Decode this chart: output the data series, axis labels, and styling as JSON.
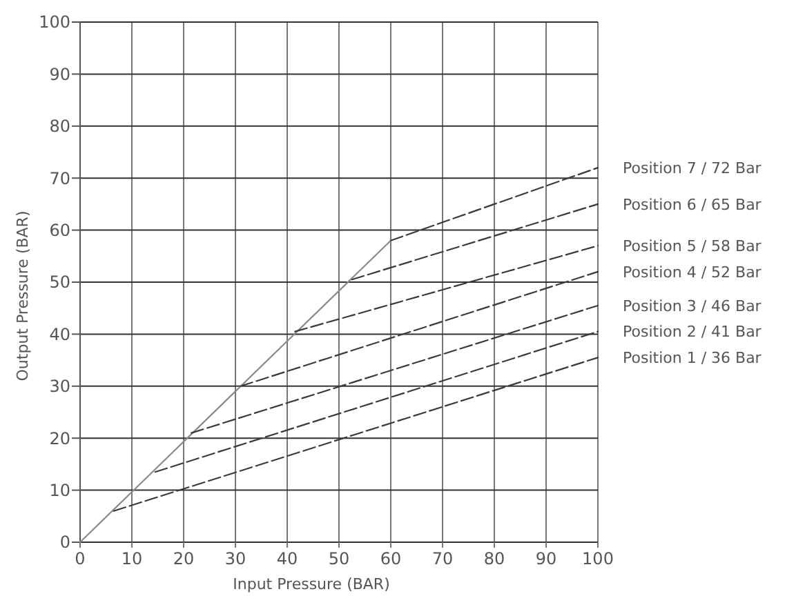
{
  "chart_data": {
    "type": "line",
    "xlabel": "Input Pressure (BAR)",
    "ylabel": "Output Pressure (BAR)",
    "xlim": [
      0,
      100
    ],
    "ylim": [
      0,
      100
    ],
    "xticks": [
      0,
      10,
      20,
      30,
      40,
      50,
      60,
      70,
      80,
      90,
      100
    ],
    "yticks": [
      0,
      10,
      20,
      30,
      40,
      50,
      60,
      70,
      80,
      90,
      100
    ],
    "grid": true,
    "legend": false,
    "marker": "none",
    "line_style": "dashed",
    "series": [
      {
        "color": "#8a8a8a",
        "line_style": "solid",
        "x": [
          0,
          60
        ],
        "values": [
          0,
          58
        ]
      },
      {
        "name": "Position 1 / 36 Bar",
        "color": "#3a3a3a",
        "x": [
          6.5,
          100
        ],
        "values": [
          6,
          35.5
        ]
      },
      {
        "name": "Position 2 / 41 Bar",
        "color": "#3a3a3a",
        "x": [
          14.5,
          100
        ],
        "values": [
          13.5,
          40.5
        ]
      },
      {
        "name": "Position 3 / 46 Bar",
        "color": "#3a3a3a",
        "x": [
          21.5,
          100
        ],
        "values": [
          21,
          45.5
        ]
      },
      {
        "name": "Position 4 / 52 Bar",
        "color": "#3a3a3a",
        "x": [
          31,
          100
        ],
        "values": [
          30,
          52
        ]
      },
      {
        "name": "Position 5 / 58 Bar",
        "color": "#3a3a3a",
        "x": [
          41.5,
          100
        ],
        "values": [
          40.5,
          57
        ]
      },
      {
        "name": "Position 6 / 65 Bar",
        "color": "#3a3a3a",
        "x": [
          52.5,
          100
        ],
        "values": [
          50.5,
          65
        ]
      },
      {
        "name": "Position 7 / 72 Bar",
        "color": "#3a3a3a",
        "x": [
          60,
          100
        ],
        "values": [
          58,
          72
        ]
      }
    ]
  }
}
